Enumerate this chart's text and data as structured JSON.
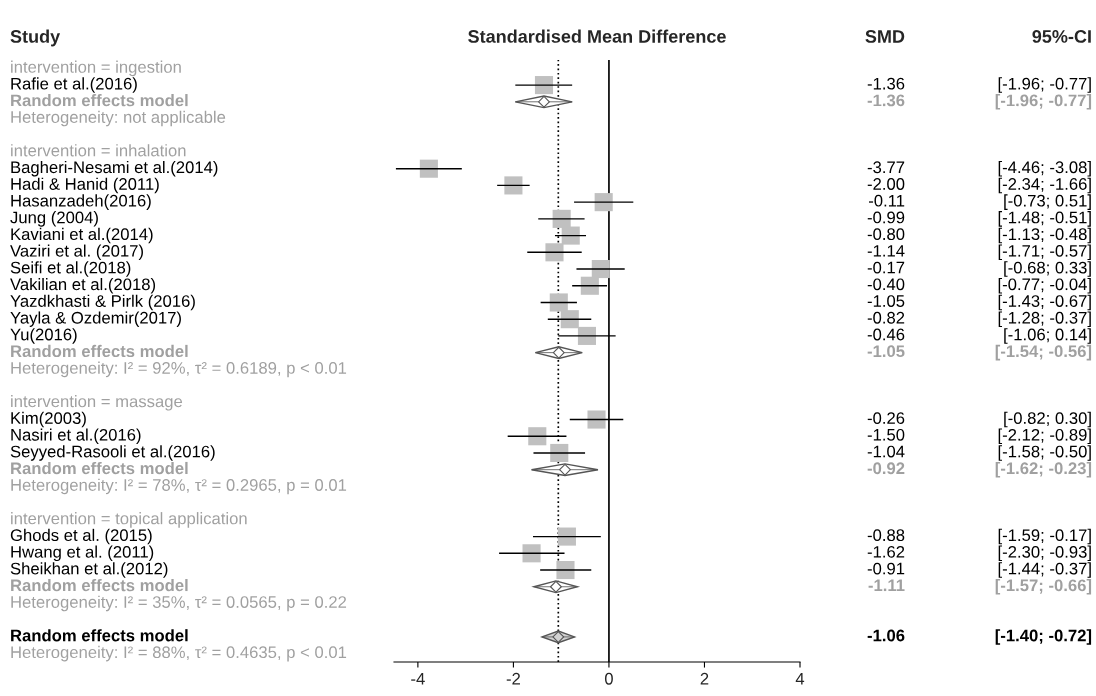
{
  "chart_data": {
    "type": "scatter",
    "orientation": "horizontal",
    "title": "Standardised Mean Difference",
    "ylabel": "Study",
    "annotations": [
      "SMD",
      "95%-CI"
    ],
    "categories": [
      "intervention = ingestion",
      "Rafie et al.(2016)",
      "Random effects model",
      "Heterogeneity: not applicable",
      null,
      "intervention = inhalation",
      "Bagheri-Nesami et al.(2014)",
      "Hadi & Hanid (2011)",
      "Hasanzadeh(2016)",
      "Jung (2004)",
      "Kaviani et al.(2014)",
      "Vaziri et al. (2017)",
      "Seifi et al.(2018)",
      "Vakilian et al.(2018)",
      "Yazdkhasti & Pirlk (2016)",
      "Yayla & Ozdemir(2017)",
      "Yu(2016)",
      "Random effects model",
      "Heterogeneity: I² = 92%, τ² = 0.6189, p < 0.01",
      null,
      "intervention = massage",
      "Kim(2003)",
      "Nasiri et al.(2016)",
      "Seyyed-Rasooli et al.(2016)",
      "Random effects model",
      "Heterogeneity: I² = 78%, τ² = 0.2965, p = 0.01",
      null,
      "intervention = topical application",
      "Ghods et al. (2015)",
      "Hwang et al. (2011)",
      "Sheikhan et al.(2012)",
      "Random effects model",
      "Heterogeneity: I² = 35%, τ² = 0.0565, p = 0.22",
      null,
      "Random effects model",
      "Heterogeneity: I² = 88%, τ² = 0.4635, p < 0.01"
    ],
    "series": [
      {
        "marker": "square",
        "color": "#c0c0c0",
        "values": [
          null,
          -1.36,
          null,
          null,
          null,
          null,
          -3.77,
          -2.0,
          -0.11,
          -0.99,
          -0.8,
          -1.14,
          -0.17,
          -0.4,
          -1.05,
          -0.82,
          -0.46,
          null,
          null,
          null,
          null,
          -0.26,
          -1.5,
          -1.04,
          null,
          null,
          null,
          null,
          -0.88,
          -1.62,
          -0.91,
          null,
          null,
          null,
          null,
          null
        ],
        "errors": [
          null,
          [
            -1.96,
            -0.77
          ],
          null,
          null,
          null,
          null,
          [
            -4.46,
            -3.08
          ],
          [
            -2.34,
            -1.66
          ],
          [
            -0.73,
            0.51
          ],
          [
            -1.48,
            -0.51
          ],
          [
            -1.13,
            -0.48
          ],
          [
            -1.71,
            -0.57
          ],
          [
            -0.68,
            0.33
          ],
          [
            -0.77,
            -0.04
          ],
          [
            -1.43,
            -0.67
          ],
          [
            -1.28,
            -0.37
          ],
          [
            -1.06,
            0.14
          ],
          null,
          null,
          null,
          null,
          [
            -0.82,
            0.3
          ],
          [
            -2.12,
            -0.89
          ],
          [
            -1.58,
            -0.5
          ],
          null,
          null,
          null,
          null,
          [
            -1.59,
            -0.17
          ],
          [
            -2.3,
            -0.93
          ],
          [
            -1.44,
            -0.37
          ],
          null,
          null,
          null,
          null,
          null
        ],
        "value_labels": [
          null,
          "-1.36 [-1.96; -0.77]",
          null,
          null,
          null,
          null,
          "-3.77 [-4.46; -3.08]",
          "-2.00 [-2.34; -1.66]",
          "-0.11 [-0.73; 0.51]",
          "-0.99 [-1.48; -0.51]",
          "-0.80 [-1.13; -0.48]",
          "-1.14 [-1.71; -0.57]",
          "-0.17 [-0.68; 0.33]",
          "-0.40 [-0.77; -0.04]",
          "-1.05 [-1.43; -0.67]",
          "-0.82 [-1.28; -0.37]",
          "-0.46 [-1.06; 0.14]",
          null,
          null,
          null,
          null,
          "-0.26 [-0.82; 0.30]",
          "-1.50 [-2.12; -0.89]",
          "-1.04 [-1.58; -0.50]",
          null,
          null,
          null,
          null,
          "-0.88 [-1.59; -0.17]",
          "-1.62 [-2.30; -0.93]",
          "-0.91 [-1.44; -0.37]",
          null,
          null,
          null,
          null,
          null
        ]
      },
      {
        "marker": "diamond",
        "color": "#ffffff",
        "values": [
          null,
          null,
          -1.36,
          null,
          null,
          null,
          null,
          null,
          null,
          null,
          null,
          null,
          null,
          null,
          null,
          null,
          null,
          -1.05,
          null,
          null,
          null,
          null,
          null,
          null,
          -0.92,
          null,
          null,
          null,
          null,
          null,
          null,
          -1.11,
          null,
          null,
          null,
          null
        ],
        "errors": [
          null,
          null,
          [
            -1.96,
            -0.77
          ],
          null,
          null,
          null,
          null,
          null,
          null,
          null,
          null,
          null,
          null,
          null,
          null,
          null,
          null,
          [
            -1.54,
            -0.56
          ],
          null,
          null,
          null,
          null,
          null,
          null,
          [
            -1.62,
            -0.23
          ],
          null,
          null,
          null,
          null,
          null,
          null,
          [
            -1.57,
            -0.66
          ],
          null,
          null,
          null,
          null
        ],
        "value_labels": [
          null,
          null,
          "-1.36 [-1.96; -0.77]",
          null,
          null,
          null,
          null,
          null,
          null,
          null,
          null,
          null,
          null,
          null,
          null,
          null,
          null,
          "-1.05 [-1.54; -0.56]",
          null,
          null,
          null,
          null,
          null,
          null,
          "-0.92 [-1.62; -0.23]",
          null,
          null,
          null,
          null,
          null,
          null,
          "-1.11 [-1.57; -0.66]",
          null,
          null,
          null,
          null
        ]
      },
      {
        "marker": "diamond",
        "color": "#d3d3d3",
        "values": [
          null,
          null,
          null,
          null,
          null,
          null,
          null,
          null,
          null,
          null,
          null,
          null,
          null,
          null,
          null,
          null,
          null,
          null,
          null,
          null,
          null,
          null,
          null,
          null,
          null,
          null,
          null,
          null,
          null,
          null,
          null,
          null,
          null,
          null,
          -1.06,
          null
        ],
        "errors": [
          null,
          null,
          null,
          null,
          null,
          null,
          null,
          null,
          null,
          null,
          null,
          null,
          null,
          null,
          null,
          null,
          null,
          null,
          null,
          null,
          null,
          null,
          null,
          null,
          null,
          null,
          null,
          null,
          null,
          null,
          null,
          null,
          null,
          null,
          [
            -1.4,
            -0.72
          ],
          null
        ],
        "value_labels": [
          null,
          null,
          null,
          null,
          null,
          null,
          null,
          null,
          null,
          null,
          null,
          null,
          null,
          null,
          null,
          null,
          null,
          null,
          null,
          null,
          null,
          null,
          null,
          null,
          null,
          null,
          null,
          null,
          null,
          null,
          null,
          null,
          null,
          null,
          "-1.06 [-1.40; -0.72]",
          null
        ]
      }
    ],
    "ref_lines": [
      {
        "axis": "x",
        "value": 0,
        "color": "#000000",
        "line_style": "solid"
      },
      {
        "axis": "x",
        "value": -1.06,
        "color": "#000000",
        "line_style": "dotted"
      }
    ],
    "xlim": [
      -4.5,
      4
    ],
    "xticks": [
      -4,
      -2,
      0,
      2,
      4
    ],
    "grid": false,
    "legend": false
  }
}
